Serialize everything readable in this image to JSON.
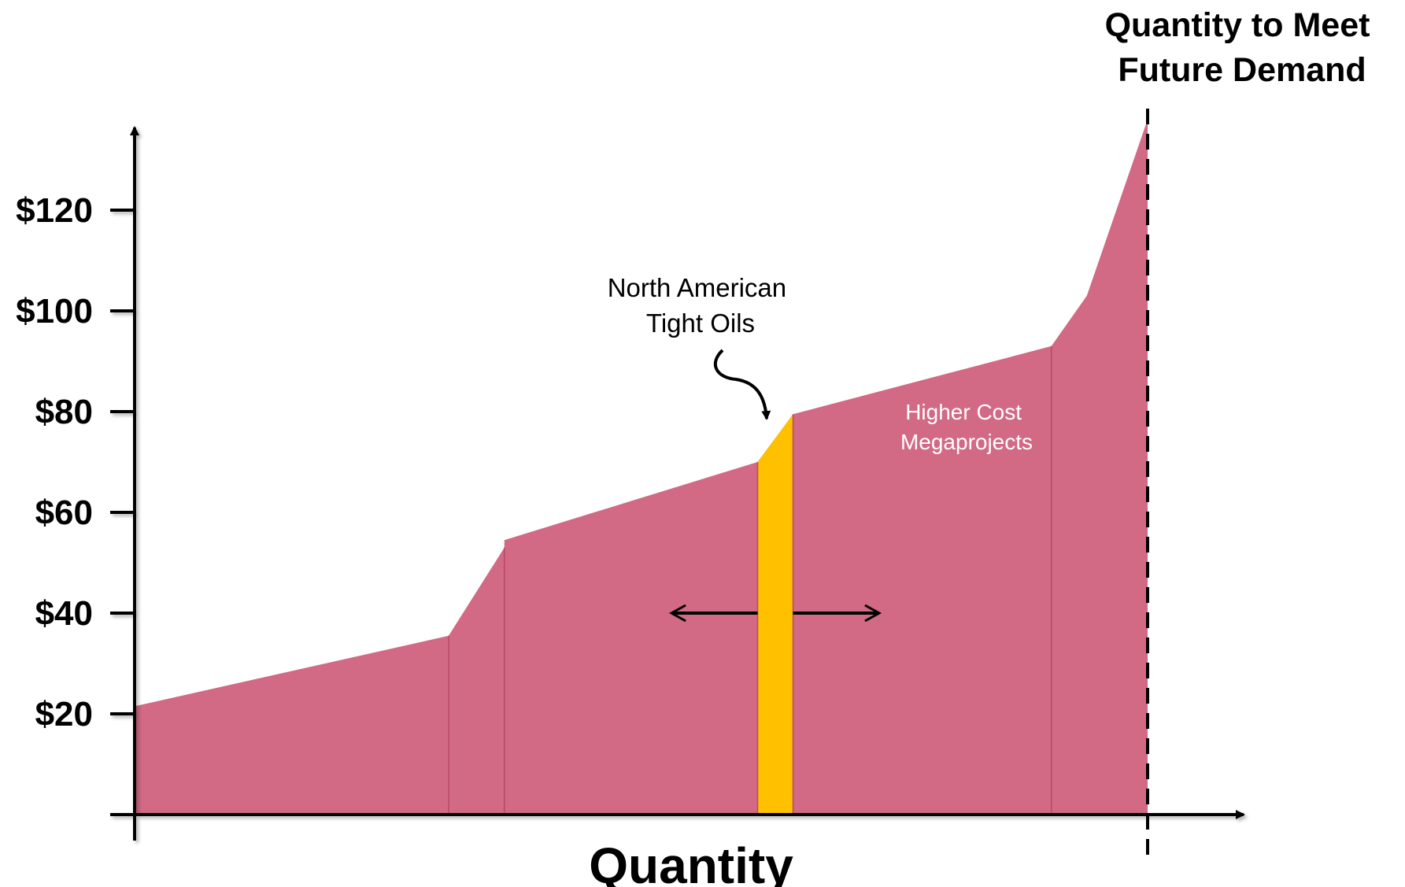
{
  "chart_data": {
    "type": "area",
    "xlabel": "Quantity",
    "ylabel": "",
    "ylim": [
      0,
      138
    ],
    "y_ticks": [
      20,
      40,
      60,
      80,
      100,
      120
    ],
    "y_tick_labels": [
      "$20",
      "$40",
      "$60",
      "$80",
      "$100",
      "$120"
    ],
    "grid": false,
    "colors": {
      "supply": "#D26985",
      "highlight": "#FFC000",
      "axis": "#000000"
    },
    "supply_curve": [
      {
        "x": 0,
        "y": 21.5
      },
      {
        "x": 31,
        "y": 35.5
      },
      {
        "x": 36.5,
        "y": 53
      },
      {
        "x": 36.5,
        "y": 54.5
      },
      {
        "x": 61.5,
        "y": 70
      },
      {
        "x": 65,
        "y": 79.5
      },
      {
        "x": 90.5,
        "y": 93
      },
      {
        "x": 94,
        "y": 103
      },
      {
        "x": 100,
        "y": 138
      }
    ],
    "highlight_segment": {
      "x_start": 61.5,
      "x_end": 65
    },
    "segment_boundaries": [
      31,
      36.5,
      61.5,
      65,
      90.5
    ],
    "demand_x": 100,
    "demand_label_lines": [
      "Quantity to Meet",
      "Future Demand"
    ],
    "annotations": {
      "tight_oil_lines": [
        "North American",
        "Tight Oils"
      ],
      "megaprojects_lines": [
        "Higher Cost",
        "Megaprojects"
      ]
    },
    "shift_arrow_span": [
      53,
      73.5
    ],
    "shift_arrow_y": 40
  }
}
